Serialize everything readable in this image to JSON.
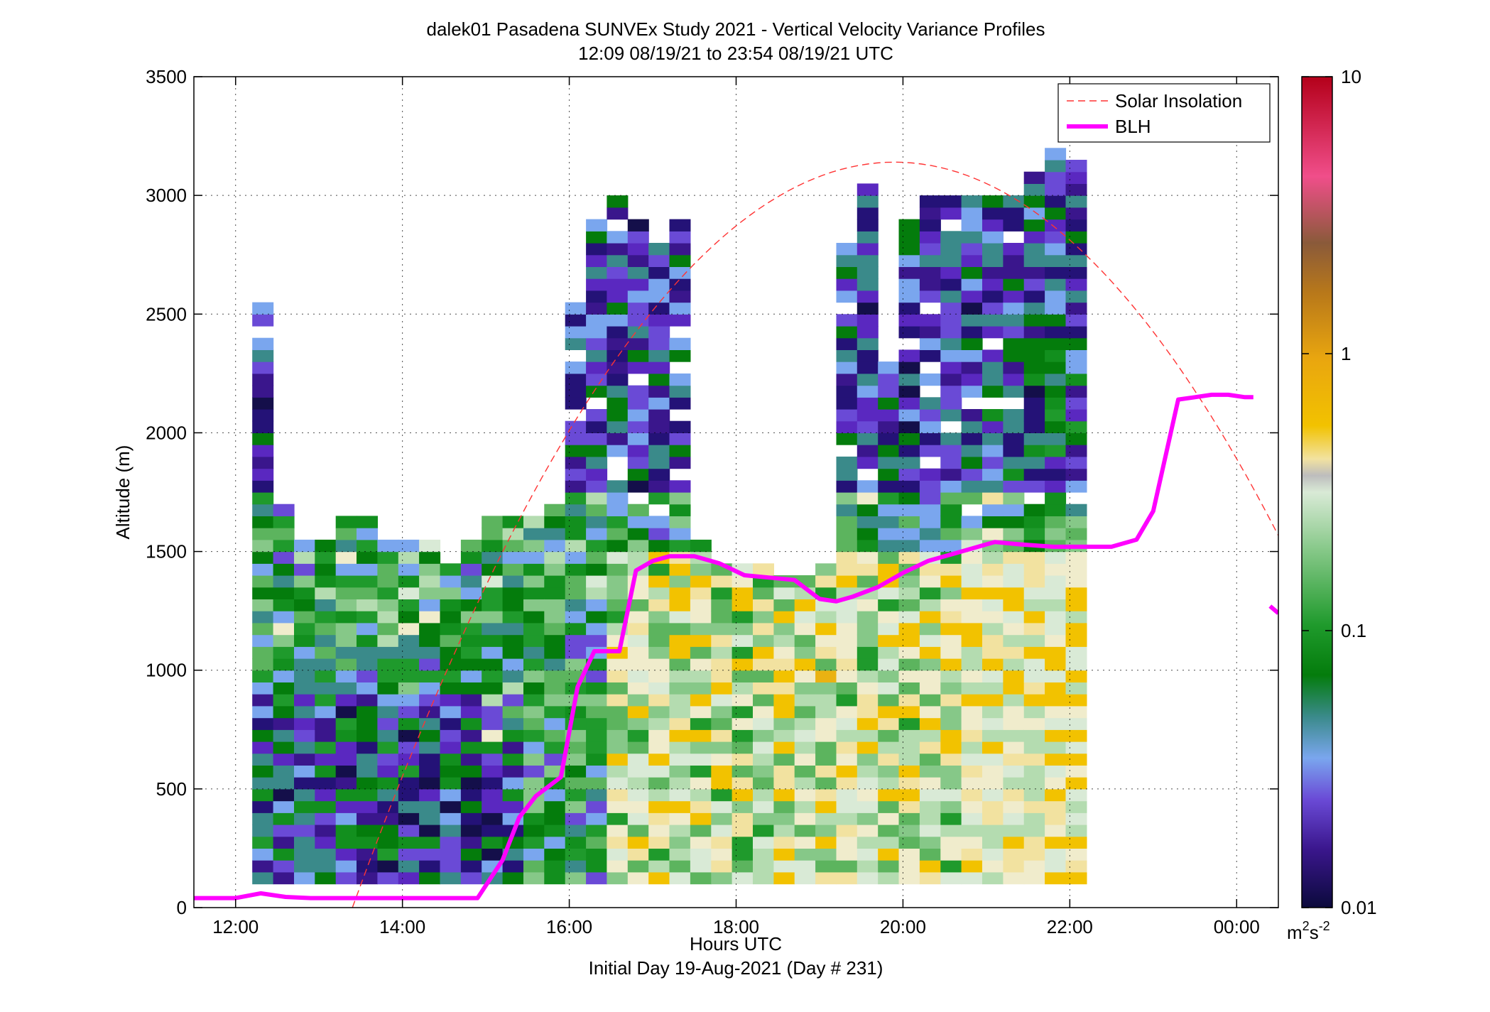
{
  "chart_data": {
    "type": "heatmap",
    "title": "dalek01 Pasadena SUNVEx Study 2021 - Vertical Velocity Variance Profiles",
    "subtitle": "12:09 08/19/21 to 23:54 08/19/21  UTC",
    "xlabel": "Hours UTC",
    "xlabel2": "Initial Day 19-Aug-2021 (Day # 231)",
    "ylabel": "Altitude (m)",
    "xlim": [
      11.5,
      24.5
    ],
    "ylim": [
      0,
      3500
    ],
    "x_ticks": [
      12,
      14,
      16,
      18,
      20,
      22,
      24
    ],
    "x_tick_labels": [
      "12:00",
      "14:00",
      "16:00",
      "18:00",
      "20:00",
      "22:00",
      "00:00"
    ],
    "y_ticks": [
      0,
      500,
      1000,
      1500,
      2000,
      2500,
      3000,
      3500
    ],
    "y_tick_labels": [
      "0",
      "500",
      "1000",
      "1500",
      "2000",
      "2500",
      "3000",
      "3500"
    ],
    "grid": true,
    "legend_position": "top-right",
    "legend": [
      {
        "label": "Solar Insolation",
        "style": "dashed",
        "color": "#ff3333"
      },
      {
        "label": "BLH",
        "style": "solid",
        "color": "#ff00ff"
      }
    ],
    "colorbar": {
      "scale": "log",
      "range": [
        0.01,
        10
      ],
      "tick_labels": [
        "0.01",
        "0.1",
        "1",
        "10"
      ],
      "unit_base": "m",
      "unit_sup1": "2",
      "unit_mid": "s",
      "unit_sup2": "-2"
    },
    "heatmap": {
      "x_start": 12.2,
      "x_step": 0.25,
      "y_start": 100,
      "y_step": 50,
      "columns_approx": "profiles every ~15 min, values log10(m2 s-2) from -2 to 1",
      "top_altitudes": [
        2550,
        1700,
        1550,
        1550,
        1650,
        1650,
        1550,
        1550,
        1550,
        1450,
        1550,
        1650,
        1650,
        1650,
        1700,
        2550,
        2900,
        3000,
        2900,
        2800,
        2900,
        1550,
        1450,
        1450,
        1450,
        1400,
        1400,
        1450,
        2800,
        3050,
        2300,
        2900,
        3000,
        3000,
        3000,
        3000,
        3000,
        3100,
        3200,
        3150
      ]
    },
    "series": [
      {
        "name": "BLH",
        "x": [
          11.5,
          12.0,
          12.3,
          12.6,
          12.9,
          13.2,
          13.6,
          14.0,
          14.5,
          14.9,
          15.2,
          15.4,
          15.6,
          15.9,
          16.1,
          16.3,
          16.6,
          16.8,
          17.0,
          17.2,
          17.5,
          17.8,
          18.1,
          18.4,
          18.7,
          19.0,
          19.2,
          19.4,
          19.7,
          20.0,
          20.3,
          20.7,
          21.1,
          21.4,
          21.8,
          22.1,
          22.5,
          22.8,
          23.0,
          23.3,
          23.5,
          23.7,
          23.9,
          24.1,
          24.2
        ],
        "y": [
          40,
          40,
          60,
          45,
          40,
          40,
          40,
          40,
          40,
          40,
          200,
          380,
          470,
          550,
          930,
          1080,
          1080,
          1420,
          1460,
          1480,
          1480,
          1450,
          1400,
          1390,
          1380,
          1300,
          1290,
          1310,
          1350,
          1410,
          1460,
          1500,
          1540,
          1530,
          1520,
          1520,
          1520,
          1550,
          1670,
          2140,
          2150,
          2160,
          2160,
          2150,
          2150
        ]
      },
      {
        "name": "BLH",
        "x": [
          24.4,
          24.5
        ],
        "y": [
          1270,
          1240
        ]
      },
      {
        "name": "Solar Insolation",
        "x_start": 13.4,
        "x_peak": 19.9,
        "y_peak": 3140,
        "x_end": 26.4
      }
    ]
  }
}
